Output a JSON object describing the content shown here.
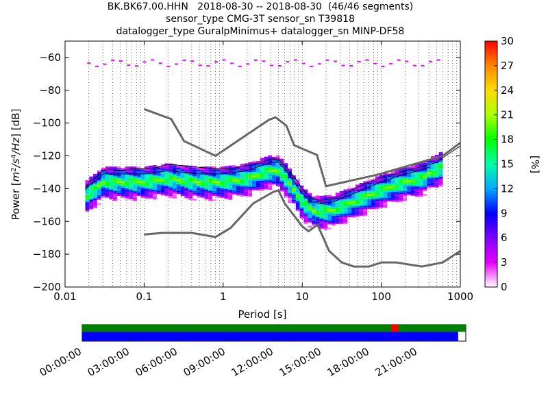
{
  "title_lines": [
    "BK.BK67.00.HHN   2018-08-30 -- 2018-08-30  (46/46 segments)",
    "sensor_type CMG-3T sensor_sn T39818",
    "datalogger_type GuralpMinimus+ datalogger_sn MINP-DF58"
  ],
  "chart_data": [
    {
      "type": "heatmap",
      "xlabel": "Period [s]",
      "ylabel": "Power [m²/s⁴/Hz] [dB]",
      "x_scale": "log",
      "xlim": [
        0.01,
        1000
      ],
      "ylim": [
        -200,
        -50
      ],
      "x_ticks": [
        0.01,
        0.1,
        1,
        10,
        100,
        1000
      ],
      "x_tick_labels": [
        "0.01",
        "0.1",
        "1",
        "10",
        "100",
        "1000"
      ],
      "y_ticks": [
        -60,
        -80,
        -100,
        -120,
        -140,
        -160,
        -180,
        -200
      ],
      "y_tick_labels": [
        "−60",
        "−80",
        "−100",
        "−120",
        "−140",
        "−160",
        "−180",
        "−200"
      ],
      "grid": "vertical dotted",
      "colorbar": {
        "label": "[%]",
        "range": [
          0,
          30
        ],
        "ticks": [
          0,
          3,
          6,
          9,
          12,
          15,
          18,
          21,
          24,
          27,
          30
        ],
        "colors": [
          "#ffffff",
          "#e600ff",
          "#8000ff",
          "#0000ff",
          "#00aaff",
          "#00ffaa",
          "#00ff00",
          "#aaff00",
          "#ffdd00",
          "#ff8800",
          "#ff0000"
        ]
      },
      "series": [
        {
          "style": "gray-thick",
          "x": [
            0.1,
            0.17,
            0.4,
            0.8,
            1.24,
            2.4,
            4.3,
            5.0,
            6.0,
            10.0,
            12.0,
            15.6,
            21.9,
            31.6,
            45.0,
            70.0,
            101.0,
            154.0,
            328.0,
            600.0,
            1000.0
          ],
          "y": [
            -168,
            -167,
            -167,
            -169.5,
            -164,
            -149,
            -142,
            -141,
            -149,
            -163,
            -166,
            -162,
            -178,
            -185,
            -187.5,
            -187.5,
            -185,
            -185,
            -187.5,
            -185,
            -178
          ]
        },
        {
          "style": "gray-thick",
          "x": [
            0.1,
            0.22,
            0.32,
            0.8,
            3.8,
            4.6,
            6.3,
            7.9,
            15.4,
            20.0,
            89.0,
            600.0,
            1000.0
          ],
          "y": [
            -91.5,
            -97.5,
            -111,
            -120,
            -98,
            -96.5,
            -101.5,
            -113.5,
            -119.5,
            -138.5,
            -131.5,
            -120,
            -112
          ]
        },
        {
          "style": "black-thin",
          "x": [
            0.018,
            0.02,
            0.025,
            0.03,
            0.035,
            0.05,
            0.07,
            0.1,
            0.15,
            0.2,
            0.3,
            0.5,
            0.8,
            1.2,
            2.0,
            3.0,
            4.0,
            5.0,
            6.0,
            8.0,
            10.0,
            13.0,
            17.0,
            25.0,
            35.0,
            50.0,
            70.0,
            100.0,
            150.0,
            200.0,
            300.0,
            500.0,
            700.0,
            1000.0
          ],
          "y": [
            -140,
            -136,
            -133,
            -129,
            -128,
            -129,
            -128,
            -128,
            -127,
            -125,
            -126,
            -127,
            -128,
            -128,
            -126,
            -124,
            -122,
            -122,
            -126,
            -133,
            -140,
            -146,
            -147,
            -146,
            -143,
            -139,
            -136,
            -133,
            -131,
            -129,
            -127,
            -124,
            -119,
            -114
          ]
        },
        {
          "style": "black-thin",
          "x": [
            0.018,
            0.02,
            0.025,
            0.03,
            0.05,
            0.1,
            0.2,
            0.3,
            0.5,
            1.0,
            2.0,
            3.0,
            4.0,
            5.0,
            6.0,
            8.0,
            10.0,
            13.0,
            17.0,
            25.0,
            35.0,
            50.0,
            70.0,
            100.0,
            150.0,
            200.0,
            300.0,
            400.0
          ],
          "y": [
            -141,
            -138,
            -135,
            -131,
            -131,
            -131,
            -129,
            -130,
            -131,
            -131,
            -129,
            -126,
            -124,
            -124,
            -128,
            -136,
            -143,
            -148,
            -149,
            -148,
            -145,
            -142,
            -139,
            -136,
            -133,
            -131,
            -129,
            -127
          ]
        }
      ]
    },
    {
      "type": "timeline",
      "x_tick_labels": [
        "00:00:00",
        "03:00:00",
        "06:00:00",
        "09:00:00",
        "12:00:00",
        "15:00:00",
        "18:00:00",
        "21:00:00"
      ],
      "segments_fraction": 0.98,
      "overlap_mark_fraction": 0.805
    }
  ]
}
